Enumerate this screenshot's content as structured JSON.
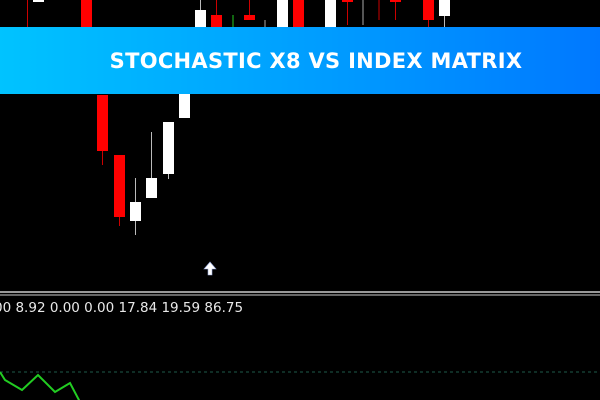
{
  "banner": {
    "title": "STOCHASTIC X8 VS INDEX MATRIX"
  },
  "indicator": {
    "values_text": "00 8.92 0.00 0.00 17.84 19.59 86.75"
  },
  "signal": {
    "icon": "arrow-up-icon"
  },
  "colors": {
    "background": "#000000",
    "bear_candle": "#ff0000",
    "bull_candle": "#ffffff",
    "oscillator_line": "#22cc22",
    "level_line": "#1e5a4a",
    "banner_start": "#00c3ff",
    "banner_end": "#0078ff"
  }
}
